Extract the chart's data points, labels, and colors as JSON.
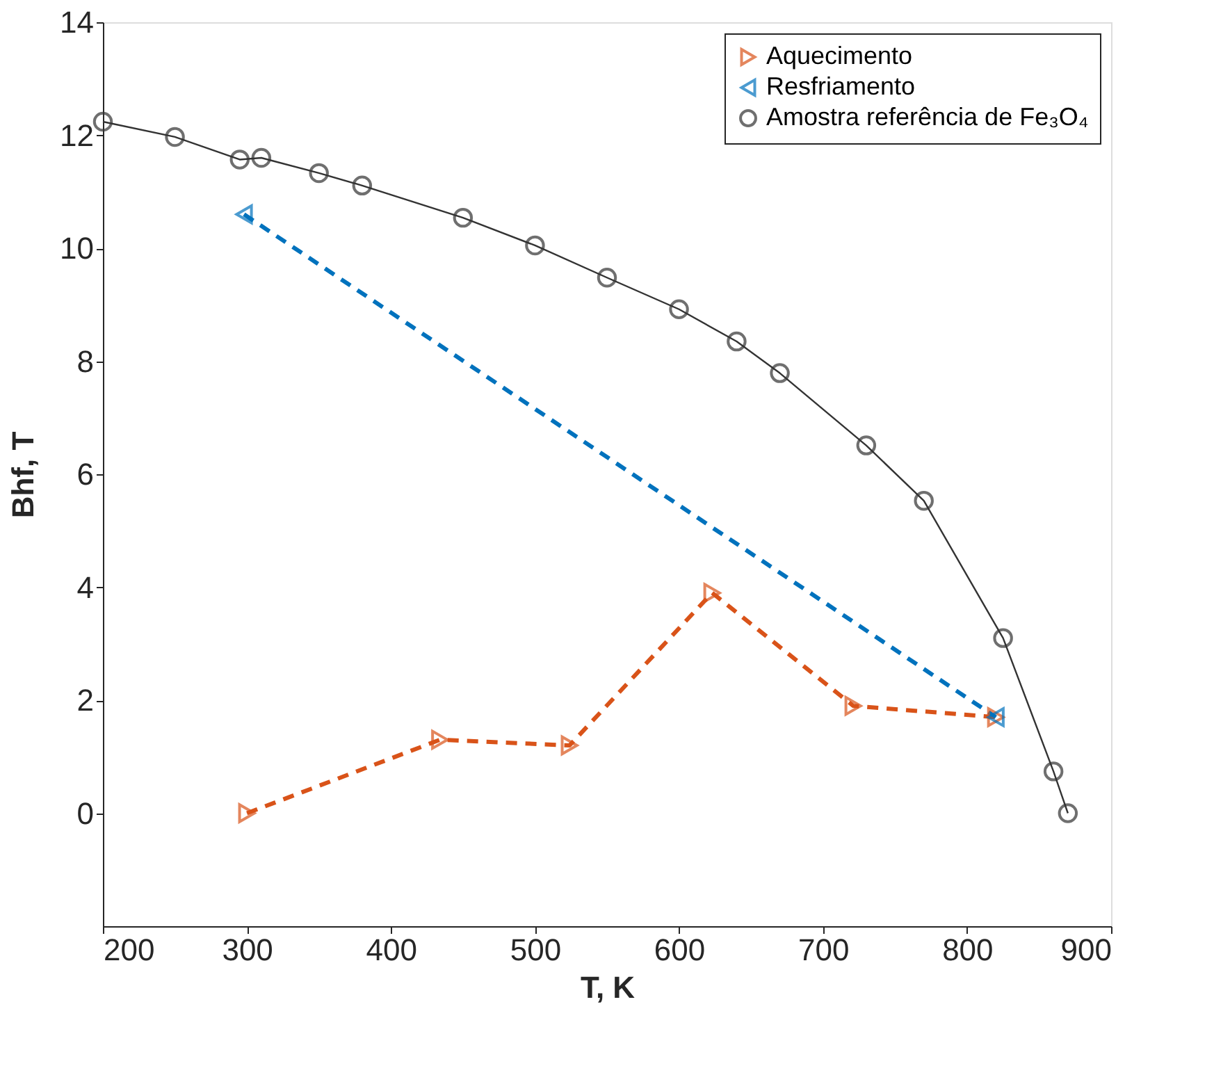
{
  "chart_data": {
    "type": "line",
    "xlabel": "T, K",
    "ylabel": "Bhf, T",
    "xlim": [
      200,
      900
    ],
    "xticks": [
      200,
      300,
      400,
      500,
      600,
      700,
      800,
      900
    ],
    "ylim": [
      -2,
      14
    ],
    "yticks": [
      0,
      2,
      4,
      6,
      8,
      10,
      12,
      14
    ],
    "grid": false,
    "legend": "top right",
    "series": [
      {
        "name": "Aquecimento",
        "color": "#d95319",
        "marker": "triangle",
        "line_style": "dashed",
        "x": [
          300,
          434,
          524,
          623,
          721,
          820
        ],
        "values": [
          0,
          1.3,
          1.2,
          3.9,
          1.9,
          1.7
        ]
      },
      {
        "name": "Resfriamento",
        "color": "#0072bd",
        "marker": "triangle",
        "line_style": "dashed",
        "x": [
          298,
          820
        ],
        "values": [
          10.6,
          1.7
        ]
      },
      {
        "name": "Amostra referência de Fe₃O₄",
        "color": "#333333",
        "marker": "circle",
        "line_style": "solid",
        "x": [
          200,
          250,
          295,
          310,
          350,
          380,
          450,
          500,
          550,
          600,
          640,
          670,
          730,
          770,
          825,
          860,
          870
        ],
        "values": [
          12.24,
          11.97,
          11.57,
          11.6,
          11.33,
          11.11,
          10.54,
          10.05,
          9.48,
          8.92,
          8.35,
          7.79,
          6.51,
          5.53,
          3.1,
          0.74,
          0
        ]
      }
    ]
  }
}
